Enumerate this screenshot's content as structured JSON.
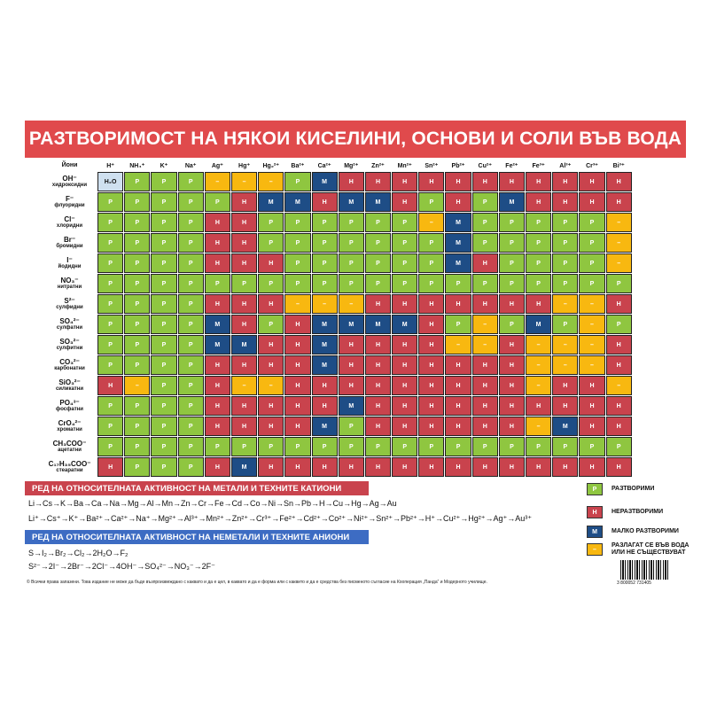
{
  "title": "РАЗТВОРИМОСТ НА НЯКОИ КИСЕЛИНИ, ОСНОВИ И СОЛИ ВЪВ ВОДА",
  "corner_label": "Йони",
  "cations": [
    "H⁺",
    "NH₄⁺",
    "K⁺",
    "Na⁺",
    "Ag⁺",
    "Hg⁺",
    "Hg₂²⁺",
    "Ba²⁺",
    "Ca²⁺",
    "Mg²⁺",
    "Zn²⁺",
    "Mn²⁺",
    "Sn²⁺",
    "Pb²⁺",
    "Cu²⁺",
    "Fe²⁺",
    "Fe³⁺",
    "Al³⁺",
    "Cr³⁺",
    "Bi³⁺"
  ],
  "rows": [
    {
      "ion": "OH⁻",
      "name": "хидроксидни",
      "cells": [
        "W",
        "P",
        "P",
        "P",
        "D",
        "D",
        "D",
        "P",
        "M",
        "H",
        "H",
        "H",
        "H",
        "H",
        "H",
        "H",
        "H",
        "H",
        "H",
        "H"
      ]
    },
    {
      "ion": "F⁻",
      "name": "флуоридни",
      "cells": [
        "P",
        "P",
        "P",
        "P",
        "P",
        "H",
        "M",
        "M",
        "H",
        "M",
        "M",
        "H",
        "P",
        "H",
        "P",
        "M",
        "H",
        "H",
        "H",
        "H"
      ]
    },
    {
      "ion": "Cl⁻",
      "name": "хлоридни",
      "cells": [
        "P",
        "P",
        "P",
        "P",
        "H",
        "H",
        "P",
        "P",
        "P",
        "P",
        "P",
        "P",
        "D",
        "M",
        "P",
        "P",
        "P",
        "P",
        "P",
        "D"
      ]
    },
    {
      "ion": "Br⁻",
      "name": "бромидни",
      "cells": [
        "P",
        "P",
        "P",
        "P",
        "H",
        "H",
        "P",
        "P",
        "P",
        "P",
        "P",
        "P",
        "P",
        "M",
        "P",
        "P",
        "P",
        "P",
        "P",
        "D"
      ]
    },
    {
      "ion": "I⁻",
      "name": "йодидни",
      "cells": [
        "P",
        "P",
        "P",
        "P",
        "H",
        "H",
        "H",
        "P",
        "P",
        "P",
        "P",
        "P",
        "P",
        "M",
        "H",
        "P",
        "P",
        "P",
        "P",
        "D"
      ]
    },
    {
      "ion": "NO₃⁻",
      "name": "нитратни",
      "cells": [
        "P",
        "P",
        "P",
        "P",
        "P",
        "P",
        "P",
        "P",
        "P",
        "P",
        "P",
        "P",
        "P",
        "P",
        "P",
        "P",
        "P",
        "P",
        "P",
        "P"
      ]
    },
    {
      "ion": "S²⁻",
      "name": "сулфидни",
      "cells": [
        "P",
        "P",
        "P",
        "P",
        "H",
        "H",
        "H",
        "D",
        "D",
        "D",
        "H",
        "H",
        "H",
        "H",
        "H",
        "H",
        "H",
        "D",
        "D",
        "H"
      ]
    },
    {
      "ion": "SO₄²⁻",
      "name": "сулфатни",
      "cells": [
        "P",
        "P",
        "P",
        "P",
        "M",
        "H",
        "P",
        "H",
        "M",
        "M",
        "M",
        "M",
        "H",
        "P",
        "D",
        "P",
        "M",
        "P",
        "D",
        "P"
      ]
    },
    {
      "ion": "SO₃²⁻",
      "name": "сулфитни",
      "cells": [
        "P",
        "P",
        "P",
        "P",
        "M",
        "M",
        "H",
        "H",
        "M",
        "H",
        "H",
        "H",
        "H",
        "D",
        "D",
        "H",
        "D",
        "D",
        "D",
        "H"
      ]
    },
    {
      "ion": "CO₃²⁻",
      "name": "карбонатни",
      "cells": [
        "P",
        "P",
        "P",
        "P",
        "H",
        "H",
        "H",
        "H",
        "M",
        "H",
        "H",
        "H",
        "H",
        "H",
        "H",
        "H",
        "D",
        "D",
        "D",
        "H"
      ]
    },
    {
      "ion": "SiO₃²⁻",
      "name": "силикатни",
      "cells": [
        "H",
        "D",
        "P",
        "P",
        "H",
        "D",
        "D",
        "H",
        "H",
        "H",
        "H",
        "H",
        "H",
        "H",
        "H",
        "H",
        "D",
        "H",
        "H",
        "D"
      ]
    },
    {
      "ion": "PO₄³⁻",
      "name": "фосфатни",
      "cells": [
        "P",
        "P",
        "P",
        "P",
        "H",
        "H",
        "H",
        "H",
        "H",
        "M",
        "H",
        "H",
        "H",
        "H",
        "H",
        "H",
        "H",
        "H",
        "H",
        "H"
      ]
    },
    {
      "ion": "CrO₄²⁻",
      "name": "хроматни",
      "cells": [
        "P",
        "P",
        "P",
        "P",
        "H",
        "H",
        "H",
        "H",
        "M",
        "P",
        "H",
        "H",
        "H",
        "H",
        "H",
        "H",
        "D",
        "M",
        "H",
        "H"
      ]
    },
    {
      "ion": "CH₃COO⁻",
      "name": "ацетатни",
      "cells": [
        "P",
        "P",
        "P",
        "P",
        "P",
        "P",
        "P",
        "P",
        "P",
        "P",
        "P",
        "P",
        "P",
        "P",
        "P",
        "P",
        "P",
        "P",
        "P",
        "P"
      ]
    },
    {
      "ion": "C₁₇H₃₅COO⁻",
      "name": "стеаратни",
      "cells": [
        "H",
        "P",
        "P",
        "P",
        "H",
        "M",
        "H",
        "H",
        "H",
        "H",
        "H",
        "H",
        "H",
        "H",
        "H",
        "H",
        "H",
        "H",
        "H",
        "H"
      ]
    }
  ],
  "cell_text": {
    "W": "H₂O",
    "P": "P",
    "H": "H",
    "M": "M",
    "D": "–"
  },
  "colors": {
    "P": "#8fc640",
    "H": "#c9434d",
    "M": "#1e4d86",
    "D": "#f8b810",
    "title_bg": "#e04a4c",
    "section_metals": "#c9434d",
    "section_nonmetals": "#3d6cc3"
  },
  "metals_heading": "РЕД НА ОТНОСИТЕЛНАТА АКТИВНОСТ НА МЕТАЛИ И ТЕХНИТЕ КАТИОНИ",
  "metals_series": "Li→Cs→K→Ba→Ca→Na→Mg→Al→Mn→Zn→Cr→Fe→Cd→Co→Ni→Sn→Pb→H→Cu→Hg→Ag→Au",
  "cations_series": "Li⁺→Cs⁺→K⁺→Ba²⁺→Ca²⁺→Na⁺→Mg²⁺→Al³⁺→Mn²⁺→Zn²⁺→Cr³⁺→Fe²⁺→Cd²⁺→Co²⁺→Ni²⁺→Sn²⁺→Pb²⁺→H⁺→Cu²⁺→Hg²⁺→Ag⁺→Au³⁺",
  "nonmetals_heading": "РЕД НА ОТНОСИТЕЛНАТА АКТИВНОСТ НА НЕМЕТАЛИ И ТЕХНИТЕ АНИОНИ",
  "nonmetals_series": "S→I₂→Br₂→Cl₂→2H₂O→F₂",
  "anions_series": "S²⁻→2I⁻→2Br⁻→2Cl⁻→4OH⁻→SO₄²⁻→NO₃⁻→2F⁻",
  "legend": [
    {
      "key": "P",
      "symbol": "P",
      "label": "РАЗТВОРИМИ"
    },
    {
      "key": "H",
      "symbol": "H",
      "label": "НЕРАЗТВОРИМИ"
    },
    {
      "key": "M",
      "symbol": "M",
      "label": "МАЛКО РАЗТВОРИМИ"
    },
    {
      "key": "D",
      "symbol": "–",
      "label": "РАЗЛАГАТ СЕ ВЪВ ВОДА ИЛИ НЕ СЪЩЕСТВУВАТ"
    }
  ],
  "footer": "© Всички права запазени. Това издание не може да бъде възпроизвеждано с каквато и да е цел, в каквато и да е форма или с каквито и да е средства без писменото съгласие на Кооперация „Панда“ и Модерното училище.",
  "barcode_number": "3 800052 731405"
}
